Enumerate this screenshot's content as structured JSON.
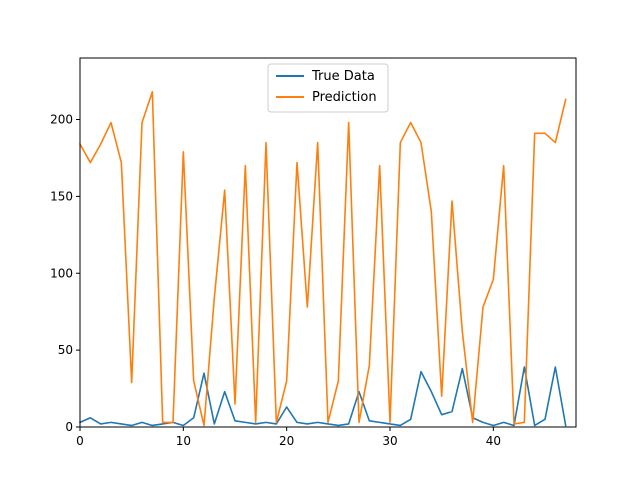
{
  "chart_data": {
    "type": "line",
    "title": "",
    "xlabel": "",
    "ylabel": "",
    "xlim": [
      0,
      48
    ],
    "ylim": [
      0,
      240
    ],
    "grid": false,
    "legend_placement": "top-center",
    "x_ticks": [
      0,
      10,
      20,
      30,
      40
    ],
    "y_ticks": [
      0,
      50,
      100,
      150,
      200
    ],
    "x_tick_labels": [
      "0",
      "10",
      "20",
      "30",
      "40"
    ],
    "y_tick_labels": [
      "0",
      "50",
      "100",
      "150",
      "200"
    ],
    "series": [
      {
        "name": "True Data",
        "color": "#1f77b4",
        "x": [
          0,
          1,
          2,
          3,
          4,
          5,
          6,
          7,
          8,
          9,
          10,
          11,
          12,
          13,
          14,
          15,
          16,
          17,
          18,
          19,
          20,
          21,
          22,
          23,
          24,
          25,
          26,
          27,
          28,
          29,
          30,
          31,
          32,
          33,
          34,
          35,
          36,
          37,
          38,
          39,
          40,
          41,
          42,
          43,
          44,
          45,
          46,
          47
        ],
        "values": [
          3,
          6,
          2,
          3,
          2,
          1,
          3,
          1,
          2,
          3,
          1,
          6,
          35,
          2,
          23,
          4,
          3,
          2,
          3,
          2,
          13,
          3,
          2,
          3,
          2,
          1,
          2,
          23,
          4,
          3,
          2,
          1,
          5,
          36,
          23,
          8,
          10,
          38,
          6,
          3,
          1,
          3,
          1,
          39,
          1,
          5,
          39,
          1
        ]
      },
      {
        "name": "Prediction",
        "color": "#ff7f0e",
        "x": [
          0,
          1,
          2,
          3,
          4,
          5,
          6,
          7,
          8,
          9,
          10,
          11,
          12,
          13,
          14,
          15,
          16,
          17,
          18,
          19,
          20,
          21,
          22,
          23,
          24,
          25,
          26,
          27,
          28,
          29,
          30,
          31,
          32,
          33,
          34,
          35,
          36,
          37,
          38,
          39,
          40,
          41,
          42,
          43,
          44,
          45,
          46,
          47
        ],
        "values": [
          184,
          172,
          184,
          198,
          172,
          29,
          198,
          218,
          3,
          3,
          179,
          30,
          1,
          84,
          154,
          15,
          170,
          3,
          185,
          3,
          30,
          172,
          78,
          185,
          3,
          30,
          198,
          3,
          40,
          170,
          3,
          185,
          198,
          185,
          140,
          20,
          147,
          62,
          3,
          78,
          96,
          170,
          2,
          3,
          191,
          191,
          185,
          213
        ]
      }
    ]
  }
}
